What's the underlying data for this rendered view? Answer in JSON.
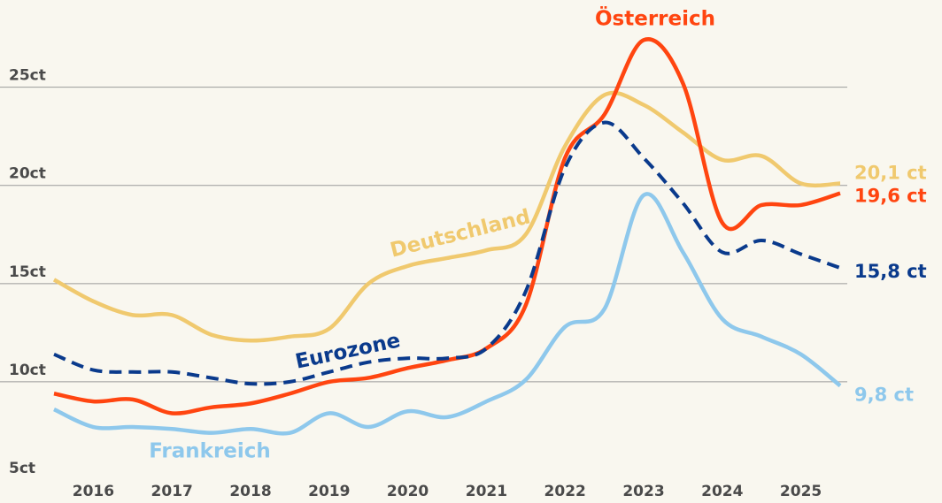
{
  "chart_data": {
    "type": "line",
    "x": [
      2015.5,
      2016,
      2016.5,
      2017,
      2017.5,
      2018,
      2018.5,
      2019,
      2019.5,
      2020,
      2020.5,
      2021,
      2021.5,
      2022,
      2022.5,
      2023,
      2023.5,
      2024,
      2024.5,
      2025,
      2025.5
    ],
    "xlim": [
      2015.5,
      2025.5
    ],
    "xticks": [
      2016,
      2017,
      2018,
      2019,
      2020,
      2021,
      2022,
      2023,
      2024,
      2025
    ],
    "ylim": [
      5,
      28
    ],
    "yticks": [
      {
        "value": 5,
        "label": "5ct"
      },
      {
        "value": 10,
        "label": "10ct"
      },
      {
        "value": 15,
        "label": "15ct"
      },
      {
        "value": 20,
        "label": "20ct"
      },
      {
        "value": 25,
        "label": "25ct"
      }
    ],
    "grid": true,
    "series": [
      {
        "name": "Deutschland",
        "color": "#f0c96e",
        "dashed": false,
        "values": [
          15.2,
          14.1,
          13.4,
          13.4,
          12.4,
          12.1,
          12.3,
          12.7,
          15.0,
          15.9,
          16.3,
          16.7,
          17.5,
          22.0,
          24.6,
          24.1,
          22.7,
          21.3,
          21.5,
          20.1,
          20.1
        ],
        "end_label": "20,1 ct"
      },
      {
        "name": "Österreich",
        "color": "#ff4510",
        "dashed": false,
        "values": [
          9.4,
          9.0,
          9.1,
          8.4,
          8.7,
          8.9,
          9.4,
          10.0,
          10.2,
          10.7,
          11.1,
          11.7,
          13.9,
          21.4,
          23.6,
          27.4,
          25.2,
          18.1,
          19.0,
          19.0,
          19.6
        ],
        "end_label": "19,6 ct"
      },
      {
        "name": "Eurozone",
        "color": "#0a3a8c",
        "dashed": true,
        "values": [
          11.4,
          10.6,
          10.5,
          10.5,
          10.2,
          9.9,
          10.0,
          10.5,
          11.0,
          11.2,
          11.2,
          11.7,
          14.6,
          20.9,
          23.2,
          21.4,
          19.1,
          16.6,
          17.2,
          16.5,
          15.8
        ],
        "end_label": "15,8 ct"
      },
      {
        "name": "Frankreich",
        "color": "#8ec8ec",
        "dashed": false,
        "values": [
          8.6,
          7.7,
          7.7,
          7.6,
          7.4,
          7.6,
          7.4,
          8.4,
          7.7,
          8.5,
          8.2,
          9.0,
          10.1,
          12.8,
          13.7,
          19.5,
          16.6,
          13.2,
          12.3,
          11.4,
          9.8
        ],
        "end_label": "9,8 ct"
      }
    ]
  }
}
